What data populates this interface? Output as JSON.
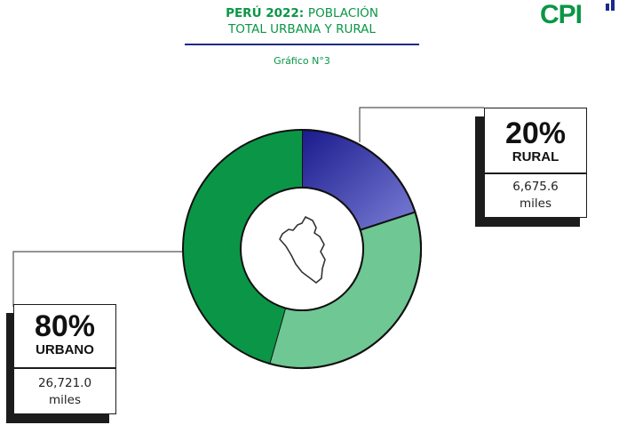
{
  "header": {
    "title_bold": "PERÚ 2022:",
    "title_rest": "POBLACIÓN",
    "title_line2": "TOTAL URBANA Y RURAL",
    "subtitle": "Gráfico N°3"
  },
  "logo": {
    "text": "CPI"
  },
  "colors": {
    "urban_dark": "#0a9646",
    "urban_light": "#6fc793",
    "rural_dark": "#1a1a8c",
    "rural_light": "#7b7fd6",
    "title_green": "#0a9646",
    "rule_navy": "#1a2a8a"
  },
  "chart_data": {
    "type": "pie",
    "variant": "donut",
    "categories": [
      "RURAL",
      "URBANO"
    ],
    "values": [
      20,
      80
    ],
    "absolute_values": [
      "6,675.6",
      "26,721.0"
    ],
    "unit": "miles",
    "center_icon": "peru-map-icon"
  },
  "cards": {
    "rural": {
      "pct": "20%",
      "label": "RURAL",
      "value": "6,675.6",
      "unit": "miles"
    },
    "urban": {
      "pct": "80%",
      "label": "URBANO",
      "value": "26,721.0",
      "unit": "miles"
    }
  }
}
